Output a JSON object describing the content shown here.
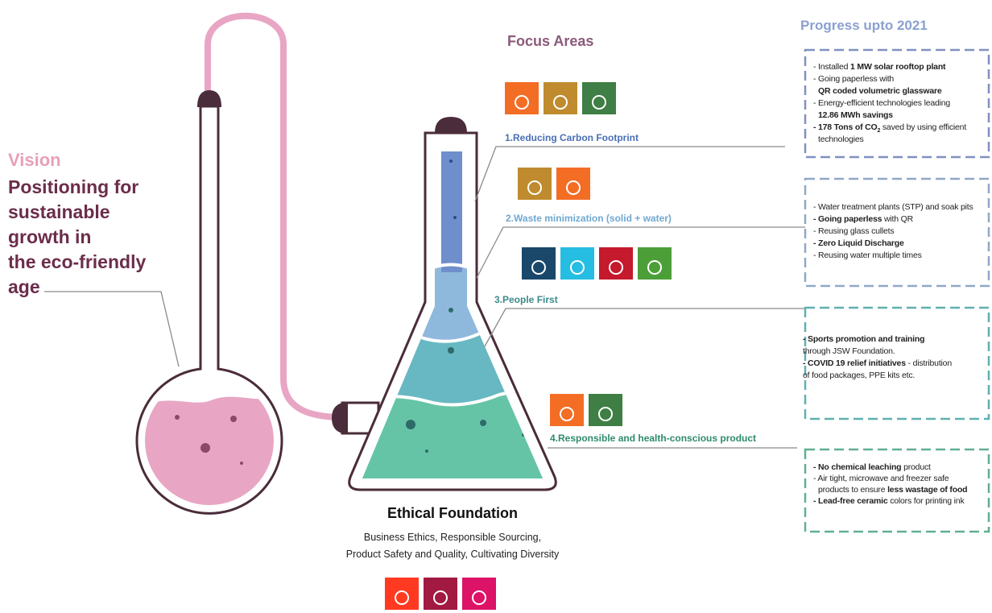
{
  "vision": {
    "label": "Vision",
    "lines": [
      "Positioning for",
      "sustainable",
      "growth in",
      "the eco-friendly",
      "age"
    ]
  },
  "focus_areas": {
    "title": "Focus Areas",
    "items": [
      "1.Reducing Carbon Footprint",
      "2.Waste minimization (solid + water)",
      "3.People First",
      "4.Responsible and health-conscious product"
    ]
  },
  "progress": {
    "title": "Progress upto 2021",
    "boxes": [
      [
        [
          {
            "t": "- Installed "
          },
          {
            "b": "1 MW solar rooftop plant"
          }
        ],
        [
          {
            "t": "- Going paperless with"
          }
        ],
        [
          {
            "b": "QR coded volumetric glassware"
          }
        ],
        [
          {
            "t": "- Energy-efficient technologies leading"
          }
        ],
        [
          {
            "b": "12.86 MWh savings"
          }
        ],
        [
          {
            "b": "- 178 Tons of CO"
          },
          {
            "sub": "2"
          },
          {
            "t": " saved by using efficient"
          }
        ],
        [
          {
            "t": "technologies"
          }
        ]
      ],
      [
        [
          {
            "t": "- Water treatment plants (STP) and soak pits"
          }
        ],
        [
          {
            "b": "- Going paperless"
          },
          {
            "t": " with QR"
          }
        ],
        [
          {
            "t": "- Reusing glass cullets"
          }
        ],
        [
          {
            "b": "- Zero Liquid Discharge"
          }
        ],
        [
          {
            "t": "- Reusing water multiple times"
          }
        ]
      ],
      [
        [
          {
            "b": "- Sports promotion and training"
          }
        ],
        [
          {
            "t": "through JSW Foundation."
          }
        ],
        [
          {
            "b": "- COVID 19 relief initiatives"
          },
          {
            "t": " - distribution"
          }
        ],
        [
          {
            "t": "of food packages, PPE kits etc."
          }
        ]
      ],
      [
        [
          {
            "b": "- No chemical leaching"
          },
          {
            "t": " product"
          }
        ],
        [
          {
            "t": "- Air tight, microwave and freezer safe"
          }
        ],
        [
          {
            "t": "products to ensure "
          },
          {
            "b": "less wastage of food"
          }
        ],
        [
          {
            "b": "- Lead-free ceramic"
          },
          {
            "t": " colors for printing ink"
          }
        ]
      ]
    ]
  },
  "ethical_foundation": {
    "title": "Ethical Foundation",
    "lines": [
      "Business Ethics, Responsible Sourcing,",
      "Product Safety and Quality, Cultivating Diversity"
    ]
  }
}
